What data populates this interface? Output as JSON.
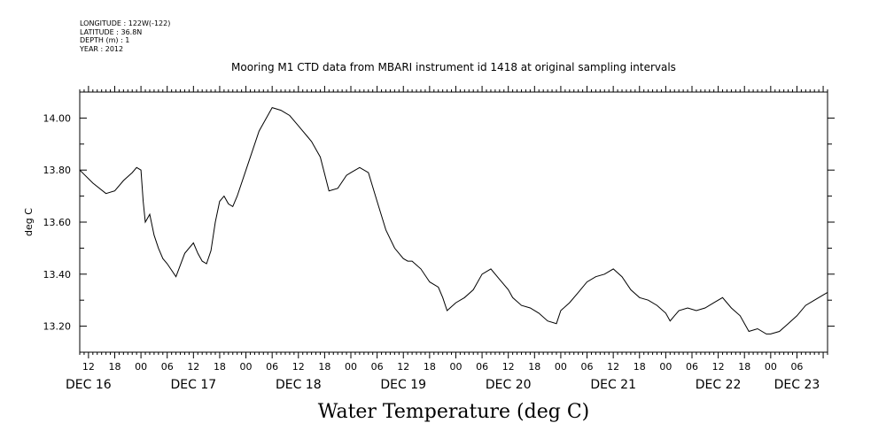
{
  "header": {
    "meta_lines": [
      "LONGITUDE : 122W(-122)",
      "LATITUDE : 36.8N",
      "DEPTH (m) : 1",
      "YEAR : 2012"
    ]
  },
  "chart_data": {
    "type": "line",
    "title": "Mooring M1 CTD data from MBARI instrument id 1418 at original sampling intervals",
    "xlabel": "Water Temperature (deg C)",
    "ylabel": "deg C",
    "xlim": [
      "2012-12-16T10:00",
      "2012-12-23T13:00"
    ],
    "ylim": [
      13.1,
      14.1
    ],
    "yticks": [
      13.2,
      13.4,
      13.6,
      13.8,
      14.0
    ],
    "ytick_labels": [
      "13.20",
      "13.40",
      "13.60",
      "13.80",
      "14.00"
    ],
    "xtick_labels": [
      {
        "t": "2012-12-16T12:00",
        "label": "12"
      },
      {
        "t": "2012-12-16T18:00",
        "label": "18"
      },
      {
        "t": "2012-12-17T00:00",
        "label": "00"
      },
      {
        "t": "2012-12-17T06:00",
        "label": "06"
      },
      {
        "t": "2012-12-17T12:00",
        "label": "12"
      },
      {
        "t": "2012-12-17T18:00",
        "label": "18"
      },
      {
        "t": "2012-12-18T00:00",
        "label": "00"
      },
      {
        "t": "2012-12-18T06:00",
        "label": "06"
      },
      {
        "t": "2012-12-18T12:00",
        "label": "12"
      },
      {
        "t": "2012-12-18T18:00",
        "label": "18"
      },
      {
        "t": "2012-12-19T00:00",
        "label": "00"
      },
      {
        "t": "2012-12-19T06:00",
        "label": "06"
      },
      {
        "t": "2012-12-19T12:00",
        "label": "12"
      },
      {
        "t": "2012-12-19T18:00",
        "label": "18"
      },
      {
        "t": "2012-12-20T00:00",
        "label": "00"
      },
      {
        "t": "2012-12-20T06:00",
        "label": "06"
      },
      {
        "t": "2012-12-20T12:00",
        "label": "12"
      },
      {
        "t": "2012-12-20T18:00",
        "label": "18"
      },
      {
        "t": "2012-12-21T00:00",
        "label": "00"
      },
      {
        "t": "2012-12-21T06:00",
        "label": "06"
      },
      {
        "t": "2012-12-21T12:00",
        "label": "12"
      },
      {
        "t": "2012-12-21T18:00",
        "label": "18"
      },
      {
        "t": "2012-12-22T00:00",
        "label": "00"
      },
      {
        "t": "2012-12-22T06:00",
        "label": "06"
      },
      {
        "t": "2012-12-22T12:00",
        "label": "12"
      },
      {
        "t": "2012-12-22T18:00",
        "label": "18"
      },
      {
        "t": "2012-12-23T00:00",
        "label": "00"
      },
      {
        "t": "2012-12-23T06:00",
        "label": "06"
      }
    ],
    "date_labels": [
      {
        "t": "2012-12-16T12:00",
        "label": "DEC 16"
      },
      {
        "t": "2012-12-17T12:00",
        "label": "DEC 17"
      },
      {
        "t": "2012-12-18T12:00",
        "label": "DEC 18"
      },
      {
        "t": "2012-12-19T12:00",
        "label": "DEC 19"
      },
      {
        "t": "2012-12-20T12:00",
        "label": "DEC 20"
      },
      {
        "t": "2012-12-21T12:00",
        "label": "DEC 21"
      },
      {
        "t": "2012-12-22T12:00",
        "label": "DEC 22"
      },
      {
        "t": "2012-12-23T06:00",
        "label": "DEC 23"
      }
    ],
    "series": [
      {
        "x": [
          "2012-12-16T10:00",
          "2012-12-16T13:00",
          "2012-12-16T16:00",
          "2012-12-16T18:00",
          "2012-12-16T20:00",
          "2012-12-16T22:00",
          "2012-12-16T23:00",
          "2012-12-17T00:00",
          "2012-12-17T00:30",
          "2012-12-17T01:00",
          "2012-12-17T02:00",
          "2012-12-17T03:00",
          "2012-12-17T04:00",
          "2012-12-17T05:00",
          "2012-12-17T06:00",
          "2012-12-17T08:00",
          "2012-12-17T10:00",
          "2012-12-17T12:00",
          "2012-12-17T13:00",
          "2012-12-17T14:00",
          "2012-12-17T15:00",
          "2012-12-17T16:00",
          "2012-12-17T17:00",
          "2012-12-17T18:00",
          "2012-12-17T19:00",
          "2012-12-17T20:00",
          "2012-12-17T21:00",
          "2012-12-17T22:00",
          "2012-12-18T00:00",
          "2012-12-18T03:00",
          "2012-12-18T06:00",
          "2012-12-18T08:00",
          "2012-12-18T10:00",
          "2012-12-18T11:00",
          "2012-12-18T12:00",
          "2012-12-18T13:00",
          "2012-12-18T14:00",
          "2012-12-18T15:00",
          "2012-12-18T17:00",
          "2012-12-18T19:00",
          "2012-12-18T21:00",
          "2012-12-18T23:00",
          "2012-12-19T00:00",
          "2012-12-19T02:00",
          "2012-12-19T04:00",
          "2012-12-19T06:00",
          "2012-12-19T08:00",
          "2012-12-19T10:00",
          "2012-12-19T12:00",
          "2012-12-19T13:00",
          "2012-12-19T14:00",
          "2012-12-19T16:00",
          "2012-12-19T18:00",
          "2012-12-19T20:00",
          "2012-12-19T21:00",
          "2012-12-19T22:00",
          "2012-12-20T00:00",
          "2012-12-20T02:00",
          "2012-12-20T04:00",
          "2012-12-20T06:00",
          "2012-12-20T08:00",
          "2012-12-20T10:00",
          "2012-12-20T12:00",
          "2012-12-20T13:00",
          "2012-12-20T15:00",
          "2012-12-20T17:00",
          "2012-12-20T19:00",
          "2012-12-20T21:00",
          "2012-12-20T23:00",
          "2012-12-21T00:00",
          "2012-12-21T02:00",
          "2012-12-21T04:00",
          "2012-12-21T06:00",
          "2012-12-21T08:00",
          "2012-12-21T10:00",
          "2012-12-21T12:00",
          "2012-12-21T14:00",
          "2012-12-21T16:00",
          "2012-12-21T18:00",
          "2012-12-21T20:00",
          "2012-12-21T22:00",
          "2012-12-22T00:00",
          "2012-12-22T01:00",
          "2012-12-22T03:00",
          "2012-12-22T05:00",
          "2012-12-22T07:00",
          "2012-12-22T09:00",
          "2012-12-22T11:00",
          "2012-12-22T13:00",
          "2012-12-22T15:00",
          "2012-12-22T17:00",
          "2012-12-22T19:00",
          "2012-12-22T21:00",
          "2012-12-22T23:00",
          "2012-12-23T00:00",
          "2012-12-23T02:00",
          "2012-12-23T04:00",
          "2012-12-23T06:00",
          "2012-12-23T08:00",
          "2012-12-23T10:00",
          "2012-12-23T12:00",
          "2012-12-23T13:00"
        ],
        "y": [
          13.8,
          13.75,
          13.71,
          13.72,
          13.76,
          13.79,
          13.81,
          13.8,
          13.68,
          13.6,
          13.63,
          13.55,
          13.5,
          13.46,
          13.44,
          13.39,
          13.48,
          13.52,
          13.48,
          13.45,
          13.44,
          13.49,
          13.6,
          13.68,
          13.7,
          13.67,
          13.66,
          13.7,
          13.8,
          13.95,
          14.04,
          14.03,
          14.01,
          13.99,
          13.97,
          13.95,
          13.93,
          13.91,
          13.85,
          13.72,
          13.73,
          13.78,
          13.79,
          13.81,
          13.79,
          13.68,
          13.57,
          13.5,
          13.46,
          13.45,
          13.45,
          13.42,
          13.37,
          13.35,
          13.31,
          13.26,
          13.29,
          13.31,
          13.34,
          13.4,
          13.42,
          13.38,
          13.34,
          13.31,
          13.28,
          13.27,
          13.25,
          13.22,
          13.21,
          13.26,
          13.29,
          13.33,
          13.37,
          13.39,
          13.4,
          13.42,
          13.39,
          13.34,
          13.31,
          13.3,
          13.28,
          13.25,
          13.22,
          13.26,
          13.27,
          13.26,
          13.27,
          13.29,
          13.31,
          13.27,
          13.24,
          13.18,
          13.19,
          13.17,
          13.17,
          13.18,
          13.21,
          13.24,
          13.28,
          13.3,
          13.32,
          13.33
        ]
      }
    ]
  }
}
